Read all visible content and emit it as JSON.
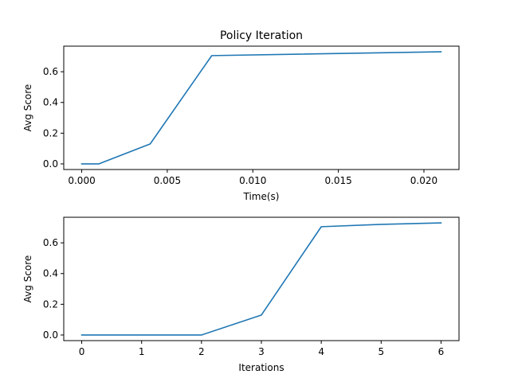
{
  "colors": {
    "series": "#1f77b4",
    "axes": "#000000",
    "background": "#ffffff"
  },
  "chart_data": [
    {
      "type": "line",
      "title": "Policy Iteration",
      "xlabel": "Time(s)",
      "ylabel": "Avg Score",
      "xlim": [
        -0.00105,
        0.02205
      ],
      "ylim": [
        -0.0365,
        0.7665
      ],
      "xticks": [
        0.0,
        0.005,
        0.01,
        0.015,
        0.02
      ],
      "xtick_labels": [
        "0.000",
        "0.005",
        "0.010",
        "0.015",
        "0.020"
      ],
      "yticks": [
        0.0,
        0.2,
        0.4,
        0.6
      ],
      "ytick_labels": [
        "0.0",
        "0.2",
        "0.4",
        "0.6"
      ],
      "grid": false,
      "series": [
        {
          "x": [
            0.0,
            0.001,
            0.004,
            0.0076,
            0.021
          ],
          "y": [
            0.0,
            0.0,
            0.13,
            0.705,
            0.73
          ]
        }
      ]
    },
    {
      "type": "line",
      "title": "",
      "xlabel": "Iterations",
      "ylabel": "Avg Score",
      "xlim": [
        -0.3,
        6.3
      ],
      "ylim": [
        -0.0365,
        0.7665
      ],
      "xticks": [
        0,
        1,
        2,
        3,
        4,
        5,
        6
      ],
      "xtick_labels": [
        "0",
        "1",
        "2",
        "3",
        "4",
        "5",
        "6"
      ],
      "yticks": [
        0.0,
        0.2,
        0.4,
        0.6
      ],
      "ytick_labels": [
        "0.0",
        "0.2",
        "0.4",
        "0.6"
      ],
      "grid": false,
      "series": [
        {
          "x": [
            0,
            1,
            2,
            3,
            4,
            5,
            6
          ],
          "y": [
            0.0,
            0.0,
            0.0,
            0.13,
            0.705,
            0.72,
            0.73
          ]
        }
      ]
    }
  ]
}
